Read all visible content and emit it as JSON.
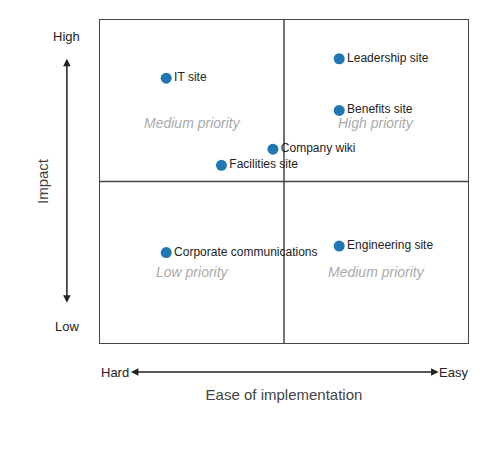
{
  "chart_data": {
    "type": "scatter",
    "xlabel": "Ease of implementation",
    "ylabel": "Impact",
    "x": [
      0.18,
      0.47,
      0.65,
      0.65,
      0.33,
      0.18,
      0.65
    ],
    "values": [
      0.82,
      0.6,
      0.88,
      0.72,
      0.55,
      0.28,
      0.3
    ],
    "labels": [
      "IT site",
      "Company wiki",
      "Leadership site",
      "Benefits site",
      "Facilities site",
      "Corporate communications",
      "Engineering site"
    ],
    "marker": "circle",
    "xlim": [
      0,
      1
    ],
    "ylim": [
      0,
      1
    ],
    "xticks": [],
    "yticks": [],
    "tick_labels": false,
    "grid": false,
    "midlines": {
      "x": 0.5,
      "y": 0.5
    },
    "annotations": [
      {
        "text": "Medium priority",
        "position": "top left"
      },
      {
        "text": "High priority",
        "position": "top right"
      },
      {
        "text": "Low priority",
        "position": "bottom left"
      },
      {
        "text": "Medium priority",
        "position": "bottom right"
      },
      {
        "text": "High",
        "position": "y end"
      },
      {
        "text": "Low",
        "position": "y start"
      },
      {
        "text": "Hard",
        "position": "x start"
      },
      {
        "text": "Easy",
        "position": "x end"
      }
    ]
  }
}
